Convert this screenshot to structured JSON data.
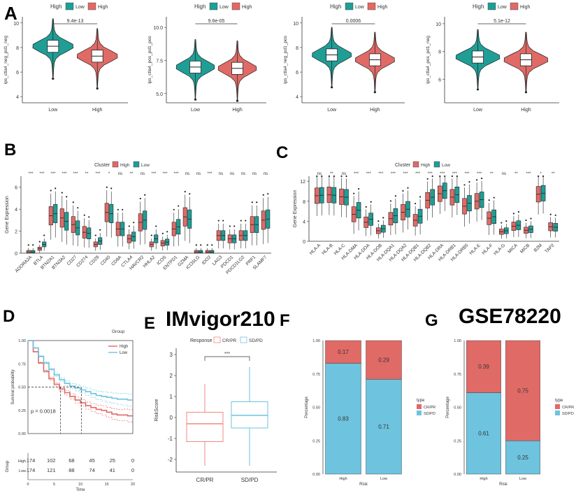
{
  "panel_labels": [
    "A",
    "B",
    "C",
    "D",
    "E",
    "F",
    "G"
  ],
  "titles": {
    "e": "IMvigor210",
    "g": "GSE78220"
  },
  "colors": {
    "teal": "#1f9e96",
    "red": "#e06a66",
    "lightred": "#f08a80",
    "lightblue": "#6ec3de",
    "grey": "#666666"
  },
  "chart_data": [
    {
      "panel": "A1",
      "type": "violin",
      "legend_title": "High",
      "legend_items": [
        "Low",
        "High"
      ],
      "categories": [
        "Low",
        "High"
      ],
      "ylabel": "ips_ctla4_neg_pd1_neg",
      "yticks": [
        "4",
        "6",
        "8",
        "10"
      ],
      "ylim": [
        3.5,
        10.5
      ],
      "p_label": "9.4e-13",
      "medians": [
        8.1,
        7.3
      ]
    },
    {
      "panel": "A2",
      "type": "violin",
      "legend_title": "High",
      "legend_items": [
        "Low",
        "High"
      ],
      "categories": [
        "Low",
        "High"
      ],
      "ylabel": "ips_ctla4_pos_pd1_pos",
      "yticks": [
        "5.0",
        "7.5",
        "10.0"
      ],
      "ylim": [
        4.3,
        10.8
      ],
      "p_label": "9.6e-05",
      "medians": [
        7.0,
        6.9
      ]
    },
    {
      "panel": "A3",
      "type": "violin",
      "legend_title": "High",
      "legend_items": [
        "Low",
        "High"
      ],
      "categories": [
        "Low",
        "High"
      ],
      "ylabel": "ips_ctla4_neg_pd1_pos",
      "yticks": [
        "4",
        "6",
        "8",
        "10"
      ],
      "ylim": [
        3.5,
        10.5
      ],
      "p_label": "0.0006",
      "medians": [
        7.4,
        7.0
      ]
    },
    {
      "panel": "A4",
      "type": "violin",
      "legend_title": "High",
      "legend_items": [
        "Low",
        "High"
      ],
      "categories": [
        "Low",
        "High"
      ],
      "ylabel": "ips_ctla4_pos_pd1_neg",
      "yticks": [
        "6",
        "8",
        "10"
      ],
      "ylim": [
        4.3,
        10.5
      ],
      "p_label": "5.1e-12",
      "medians": [
        7.6,
        7.4
      ]
    },
    {
      "panel": "B",
      "type": "box",
      "legend_title": "Cluster",
      "legend_items": [
        "High",
        "Low"
      ],
      "ylabel": "Gene Expression",
      "yticks": [
        "0",
        "2",
        "4",
        "6"
      ],
      "ylim": [
        0,
        7
      ],
      "genes": [
        "ADORA2A",
        "BTLA",
        "BTN2A1",
        "BTN3A2",
        "CD27",
        "CD274",
        "CD28",
        "CD40",
        "CD8A",
        "CTLA4",
        "HAVCR2",
        "HHLA2",
        "ICOS",
        "ENTPD1",
        "GZMA",
        "ICOSLG",
        "IDO2",
        "LAG3",
        "PDCD1",
        "PDCD1LG2",
        "PRF1",
        "SLAMF7"
      ],
      "significance": [
        "***",
        "***",
        "***",
        "***",
        "***",
        "**",
        "***",
        "*",
        "ns",
        "**",
        "ns",
        "***",
        "***",
        "***",
        "ns",
        "ns",
        "***",
        "ns",
        "ns",
        "ns",
        "ns",
        "ns"
      ],
      "medians_high": [
        0.1,
        0.4,
        3.4,
        3.2,
        2.6,
        1.9,
        0.8,
        3.7,
        2.2,
        1.3,
        2.8,
        0.8,
        0.9,
        2.2,
        3.3,
        0.1,
        0.1,
        1.6,
        1.3,
        1.6,
        2.6,
        3.0
      ],
      "medians_low": [
        0.1,
        0.8,
        3.6,
        2.9,
        2.3,
        1.8,
        1.1,
        3.6,
        2.2,
        1.5,
        3.0,
        1.3,
        1.0,
        2.4,
        3.1,
        0.1,
        0.1,
        1.6,
        1.3,
        1.6,
        2.6,
        3.1
      ]
    },
    {
      "panel": "C",
      "type": "box",
      "legend_title": "Cluster",
      "legend_items": [
        "High",
        "Low"
      ],
      "ylabel": "Gene Expression",
      "yticks": [
        "0",
        "4",
        "8",
        "12"
      ],
      "ylim": [
        0,
        13
      ],
      "genes": [
        "HLA-A",
        "HLA-B",
        "HLA-C",
        "HLA-DMA",
        "HLA-DOA",
        "HLA-DOB",
        "HLA-DQA1",
        "HLA-DQA2",
        "HLA-DQB1",
        "HLA-DQB2",
        "HLA-DRA",
        "HLA-DRB1",
        "HLA-DRB5",
        "HLA-E",
        "HLA-F",
        "HLA-G",
        "MICA",
        "MICB",
        "B2M",
        "TAP2"
      ],
      "significance": [
        "ns",
        "**",
        "ns",
        "***",
        "***",
        "***",
        "***",
        "***",
        "***",
        "***",
        "***",
        "***",
        "***",
        "***",
        "**",
        "ns",
        "**",
        "***",
        "*",
        "**"
      ],
      "medians_high": [
        9.1,
        9.3,
        8.9,
        5.4,
        3.8,
        2.1,
        4.5,
        5.8,
        4.2,
        8.2,
        9.5,
        8.8,
        7.0,
        8.0,
        4.6,
        1.9,
        3.0,
        2.2,
        9.4,
        2.9
      ],
      "medians_low": [
        9.2,
        9.2,
        8.8,
        6.2,
        4.4,
        2.5,
        5.1,
        6.4,
        5.0,
        8.8,
        10.1,
        9.3,
        7.6,
        8.3,
        4.9,
        2.1,
        3.2,
        2.4,
        9.6,
        2.8
      ]
    },
    {
      "panel": "D",
      "type": "line",
      "title": "Group",
      "legend_items": [
        "High",
        "Low"
      ],
      "ylabel": "Survival probability",
      "xlabel": "Time",
      "xticks": [
        "0",
        "5",
        "10",
        "15",
        "20"
      ],
      "xlim": [
        0,
        20
      ],
      "yticks": [
        "0.00",
        "0.25",
        "0.50",
        "0.75",
        "1.00"
      ],
      "ylim": [
        0,
        1
      ],
      "p_label": "p = 0.0018",
      "risk_table_label": "Group",
      "risk_table": [
        {
          "group": "High",
          "counts": [
            "174",
            "102",
            "68",
            "45",
            "25",
            "0"
          ]
        },
        {
          "group": "Low",
          "counts": [
            "174",
            "121",
            "88",
            "74",
            "41",
            "0"
          ]
        }
      ],
      "series": [
        {
          "name": "High",
          "x": [
            0,
            1,
            2,
            3,
            4,
            5,
            6,
            7,
            8,
            9,
            10,
            11,
            12,
            13,
            14,
            15,
            16,
            17,
            18,
            19,
            20
          ],
          "y": [
            1.0,
            0.88,
            0.76,
            0.67,
            0.59,
            0.53,
            0.48,
            0.44,
            0.4,
            0.36,
            0.33,
            0.3,
            0.28,
            0.26,
            0.25,
            0.23,
            0.21,
            0.2,
            0.2,
            0.19,
            0.19
          ]
        },
        {
          "name": "Low",
          "x": [
            0,
            1,
            2,
            3,
            4,
            5,
            6,
            7,
            8,
            9,
            10,
            11,
            12,
            13,
            14,
            15,
            16,
            17,
            18,
            19,
            20
          ],
          "y": [
            1.0,
            0.92,
            0.83,
            0.76,
            0.69,
            0.63,
            0.58,
            0.54,
            0.51,
            0.49,
            0.47,
            0.45,
            0.43,
            0.41,
            0.4,
            0.39,
            0.38,
            0.37,
            0.37,
            0.36,
            0.36
          ]
        }
      ]
    },
    {
      "panel": "E",
      "type": "box",
      "legend_title": "Response",
      "legend_items": [
        "CR/PR",
        "SD/PD"
      ],
      "categories": [
        "CR/PR",
        "SD/PD"
      ],
      "ylabel": "RiskScore",
      "yticks": [
        "-2",
        "-1",
        "0",
        "1",
        "2",
        "3"
      ],
      "ylim": [
        -2.6,
        3.3
      ],
      "p_label": "***",
      "boxes": [
        {
          "min": -2.3,
          "q1": -1.15,
          "median": -0.3,
          "q3": 0.25,
          "max": 1.6
        },
        {
          "min": -2.3,
          "q1": -0.5,
          "median": 0.1,
          "q3": 0.75,
          "max": 2.4
        }
      ]
    },
    {
      "panel": "F",
      "type": "bar",
      "categories": [
        "High",
        "Low"
      ],
      "xlabel": "Risk",
      "ylabel": "Percentage",
      "yticks": [
        "0.00",
        "0.25",
        "0.50",
        "0.75",
        "1.00"
      ],
      "ylim": [
        0,
        1
      ],
      "legend_title": "type",
      "legend_items": [
        "CR/PR",
        "SD/PD"
      ],
      "series": [
        {
          "name": "CR/PR",
          "values": [
            0.17,
            0.29
          ],
          "labels": [
            "0.17",
            "0.29"
          ]
        },
        {
          "name": "SD/PD",
          "values": [
            0.83,
            0.71
          ],
          "labels": [
            "0.83",
            "0.71"
          ]
        }
      ]
    },
    {
      "panel": "G",
      "type": "bar",
      "categories": [
        "High",
        "Low"
      ],
      "xlabel": "Risk",
      "ylabel": "Percentage",
      "yticks": [
        "0.00",
        "0.25",
        "0.50",
        "0.75",
        "1.00"
      ],
      "ylim": [
        0,
        1
      ],
      "legend_title": "type",
      "legend_items": [
        "CR/PR",
        "SD/PD"
      ],
      "series": [
        {
          "name": "CR/PR",
          "values": [
            0.39,
            0.75
          ],
          "labels": [
            "0.39",
            "0.75"
          ]
        },
        {
          "name": "SD/PD",
          "values": [
            0.61,
            0.25
          ],
          "labels": [
            "0.61",
            "0.25"
          ]
        }
      ]
    }
  ]
}
